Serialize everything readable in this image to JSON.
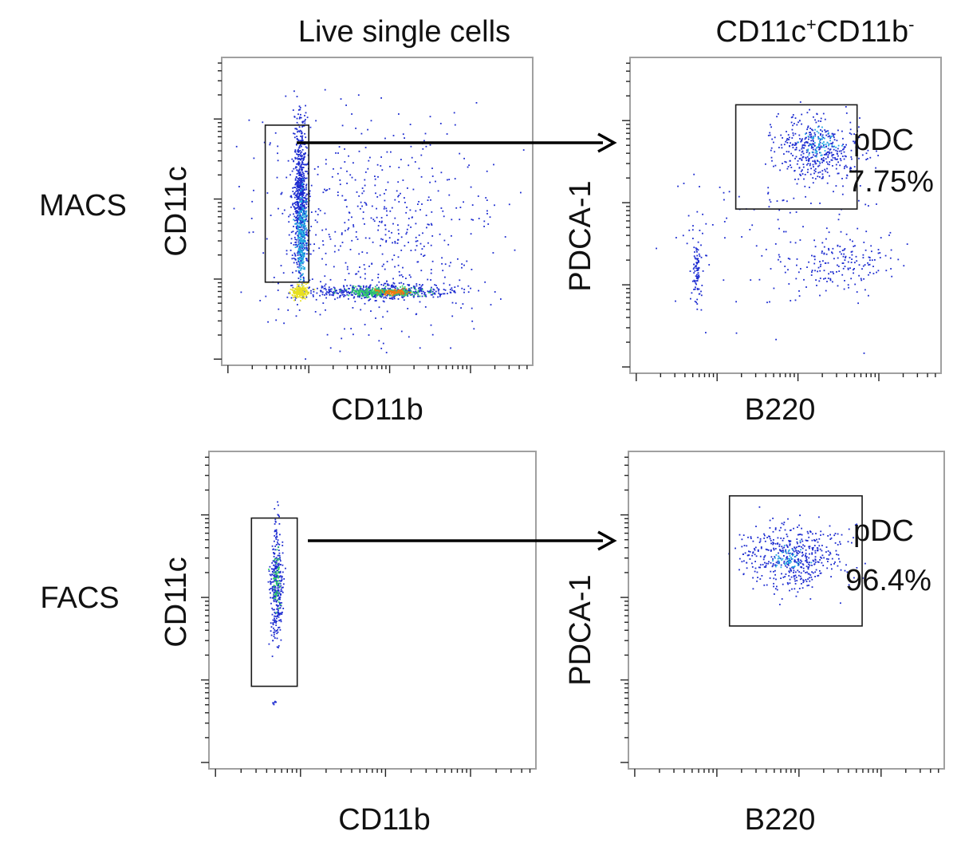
{
  "chart_data": {
    "type": "scatter",
    "colors": {
      "low": "#1c2bd0",
      "mid": "#20a8e0",
      "mid2": "#2ec86a",
      "high": "#e8e020",
      "peak": "#f07a10",
      "gate": "#1a1a1a",
      "arrow": "#000000"
    },
    "column_titles": {
      "left": "Live single cells",
      "right_base": "CD11c",
      "right_sup1": "+",
      "right_mid": "CD11b",
      "right_sup2": "-"
    },
    "row_labels": [
      "MACS",
      "FACS"
    ],
    "axes": {
      "x_range": [
        0,
        1
      ],
      "y_range": [
        0,
        1
      ],
      "scale": "logicle"
    },
    "panels": [
      {
        "id": "macs-cd11c-vs-cd11b",
        "row": "MACS",
        "xlabel": "CD11b",
        "ylabel": "CD11c",
        "gate": {
          "name": "CD11c+CD11b-",
          "x": [
            0.14,
            0.28
          ],
          "y": [
            0.27,
            0.78
          ]
        },
        "populations": [
          {
            "name": "CD11c+ column",
            "cx": 0.25,
            "cy": 0.55,
            "sx": 0.012,
            "sy": 0.13,
            "n": 700,
            "color": "low"
          },
          {
            "name": "CD11c+ column dense",
            "cx": 0.255,
            "cy": 0.42,
            "sx": 0.008,
            "sy": 0.07,
            "n": 250,
            "color": "mid"
          },
          {
            "name": "CD11c- CD11b+ streak",
            "cx": 0.5,
            "cy": 0.24,
            "sx": 0.12,
            "sy": 0.012,
            "n": 500,
            "color": "low"
          },
          {
            "name": "streak core",
            "cx": 0.52,
            "cy": 0.24,
            "sx": 0.06,
            "sy": 0.007,
            "n": 300,
            "color": "mid2"
          },
          {
            "name": "streak hot",
            "cx": 0.55,
            "cy": 0.24,
            "sx": 0.03,
            "sy": 0.004,
            "n": 90,
            "color": "peak"
          },
          {
            "name": "corner dense",
            "cx": 0.25,
            "cy": 0.24,
            "sx": 0.012,
            "sy": 0.01,
            "n": 200,
            "color": "high"
          },
          {
            "name": "diffuse",
            "cx": 0.5,
            "cy": 0.45,
            "sx": 0.2,
            "sy": 0.18,
            "n": 550,
            "color": "low"
          }
        ]
      },
      {
        "id": "macs-pdca1-vs-b220",
        "row": "MACS",
        "xlabel": "B220",
        "ylabel": "PDCA-1",
        "gate": {
          "name": "pDC",
          "x": [
            0.34,
            0.73
          ],
          "y": [
            0.52,
            0.85
          ],
          "percent": "7.75%"
        },
        "populations": [
          {
            "name": "pDC cluster",
            "cx": 0.6,
            "cy": 0.71,
            "sx": 0.07,
            "sy": 0.05,
            "n": 420,
            "color": "low"
          },
          {
            "name": "pDC core",
            "cx": 0.61,
            "cy": 0.73,
            "sx": 0.025,
            "sy": 0.02,
            "n": 60,
            "color": "mid"
          },
          {
            "name": "B220 low column",
            "cx": 0.21,
            "cy": 0.33,
            "sx": 0.008,
            "sy": 0.05,
            "n": 90,
            "color": "low"
          },
          {
            "name": "B220+ PDCA-1 low",
            "cx": 0.68,
            "cy": 0.35,
            "sx": 0.08,
            "sy": 0.04,
            "n": 150,
            "color": "low"
          },
          {
            "name": "scatter",
            "cx": 0.45,
            "cy": 0.45,
            "sx": 0.18,
            "sy": 0.15,
            "n": 120,
            "color": "low"
          }
        ]
      },
      {
        "id": "facs-cd11c-vs-cd11b",
        "row": "FACS",
        "xlabel": "CD11b",
        "ylabel": "CD11c",
        "gate": {
          "name": "CD11c+CD11b-",
          "x": [
            0.13,
            0.27
          ],
          "y": [
            0.26,
            0.79
          ]
        },
        "populations": [
          {
            "name": "sorted column",
            "cx": 0.205,
            "cy": 0.58,
            "sx": 0.01,
            "sy": 0.09,
            "n": 320,
            "color": "low"
          },
          {
            "name": "sorted core",
            "cx": 0.205,
            "cy": 0.6,
            "sx": 0.005,
            "sy": 0.04,
            "n": 60,
            "color": "mid2"
          },
          {
            "name": "events low",
            "cx": 0.2,
            "cy": 0.21,
            "sx": 0.005,
            "sy": 0.005,
            "n": 6,
            "color": "low"
          }
        ]
      },
      {
        "id": "facs-pdca1-vs-b220",
        "row": "FACS",
        "xlabel": "B220",
        "ylabel": "PDCA-1",
        "gate": {
          "name": "pDC",
          "x": [
            0.32,
            0.74
          ],
          "y": [
            0.45,
            0.86
          ],
          "percent": "96.4%"
        },
        "populations": [
          {
            "name": "pDC cluster",
            "cx": 0.52,
            "cy": 0.67,
            "sx": 0.08,
            "sy": 0.05,
            "n": 480,
            "color": "low"
          },
          {
            "name": "pDC core",
            "cx": 0.5,
            "cy": 0.67,
            "sx": 0.03,
            "sy": 0.02,
            "n": 50,
            "color": "mid"
          }
        ]
      }
    ]
  }
}
